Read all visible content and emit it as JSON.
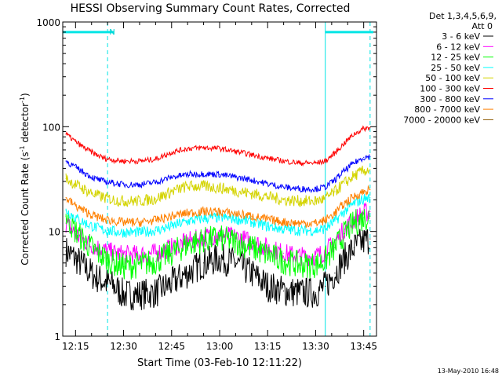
{
  "chart_data": {
    "type": "line",
    "title": "HESSI Observing Summary Count Rates, Corrected",
    "xlabel": "Start Time (03-Feb-10 12:11:22)",
    "ylabel": "Corrected Count Rate (s^-1 detector^-1)",
    "ylabel_parts": {
      "a": "Corrected Count Rate (s",
      "b": "-1",
      "c": " detector",
      "d": "-1",
      "e": ")"
    },
    "y_scale": "log",
    "ylim": [
      1,
      1000
    ],
    "xlim": [
      "12:11",
      "13:49"
    ],
    "x_tick_labels": [
      "12:15",
      "12:30",
      "12:45",
      "13:00",
      "13:15",
      "13:30",
      "13:45"
    ],
    "y_tick_labels": [
      "1",
      "10",
      "100",
      "1000"
    ],
    "legend_title": [
      "Det 1,3,4,5,6,9,",
      "Att 0"
    ],
    "legend_position": "right",
    "attenuator_marker": "N",
    "vertical_markers": [
      {
        "time": "12:11",
        "style": "solid",
        "color": "#00e5e5"
      },
      {
        "time": "12:25",
        "style": "dashed",
        "color": "#00e5e5"
      },
      {
        "time": "13:33",
        "style": "solid",
        "color": "#00e5e5"
      },
      {
        "time": "13:47",
        "style": "dashed",
        "color": "#00e5e5"
      }
    ],
    "horizontal_markers": [
      {
        "from": "12:11",
        "to": "12:27",
        "y": 800,
        "color": "#00e5e5"
      },
      {
        "from": "13:33",
        "to": "13:48",
        "y": 800,
        "color": "#00e5e5"
      }
    ],
    "footer_date": "13-May-2010 16:48",
    "series": [
      {
        "name": "3 - 6 keV",
        "color": "#000000",
        "x": [
          "12:12",
          "12:15",
          "12:18",
          "12:21",
          "12:24",
          "12:27",
          "12:30",
          "12:35",
          "12:40",
          "12:45",
          "12:50",
          "12:55",
          "13:00",
          "13:05",
          "13:10",
          "13:15",
          "13:20",
          "13:25",
          "13:30",
          "13:33",
          "13:36",
          "13:39",
          "13:42",
          "13:45",
          "13:47"
        ],
        "values": [
          6.5,
          5.5,
          4.5,
          3.7,
          3.3,
          3.0,
          2.5,
          2.5,
          2.6,
          3.2,
          4.0,
          5.0,
          5.5,
          5.0,
          4.0,
          3.0,
          2.7,
          2.6,
          2.6,
          3.0,
          4.0,
          5.5,
          7.0,
          8.0,
          8.5
        ]
      },
      {
        "name": "6 - 12 keV",
        "color": "#ff00ff",
        "x": [
          "12:12",
          "12:15",
          "12:18",
          "12:21",
          "12:24",
          "12:27",
          "12:30",
          "12:35",
          "12:40",
          "12:45",
          "12:50",
          "12:55",
          "13:00",
          "13:05",
          "13:10",
          "13:15",
          "13:20",
          "13:25",
          "13:30",
          "13:33",
          "13:36",
          "13:39",
          "13:42",
          "13:45",
          "13:47"
        ],
        "values": [
          12,
          9.5,
          8,
          7.2,
          6.6,
          6.2,
          6.0,
          6.0,
          6.2,
          7.0,
          8.0,
          8.8,
          9.2,
          8.8,
          8.0,
          7.0,
          6.2,
          5.8,
          5.8,
          6.4,
          8.0,
          10.5,
          13,
          15,
          15.5
        ]
      },
      {
        "name": "12 - 25 keV",
        "color": "#00ff00",
        "x": [
          "12:12",
          "12:15",
          "12:18",
          "12:21",
          "12:24",
          "12:27",
          "12:30",
          "12:35",
          "12:40",
          "12:45",
          "12:50",
          "12:55",
          "13:00",
          "13:05",
          "13:10",
          "13:15",
          "13:20",
          "13:25",
          "13:30",
          "13:33",
          "13:36",
          "13:39",
          "13:42",
          "13:45",
          "13:47"
        ],
        "values": [
          14,
          10,
          8,
          6.5,
          5.6,
          5.0,
          4.6,
          4.8,
          5.2,
          6.2,
          7.5,
          8.3,
          8.6,
          8.0,
          7.0,
          6.0,
          5.2,
          4.8,
          4.8,
          5.3,
          7.0,
          9.5,
          12,
          13.5,
          14
        ]
      },
      {
        "name": "25 - 50 keV",
        "color": "#00ffff",
        "x": [
          "12:12",
          "12:15",
          "12:18",
          "12:21",
          "12:24",
          "12:27",
          "12:30",
          "12:35",
          "12:40",
          "12:45",
          "12:50",
          "12:55",
          "13:00",
          "13:05",
          "13:10",
          "13:15",
          "13:20",
          "13:25",
          "13:30",
          "13:33",
          "13:36",
          "13:39",
          "13:42",
          "13:45",
          "13:47"
        ],
        "values": [
          16,
          13.5,
          12,
          11,
          10.3,
          10,
          9.8,
          9.8,
          10.2,
          11.2,
          12.5,
          13.3,
          13.6,
          13.2,
          12.3,
          11.2,
          10.5,
          10.2,
          10.2,
          10.6,
          12.5,
          15.5,
          18.5,
          20.5,
          21
        ]
      },
      {
        "name": "50 - 100 keV",
        "color": "#d4d400",
        "x": [
          "12:12",
          "12:15",
          "12:18",
          "12:21",
          "12:24",
          "12:27",
          "12:30",
          "12:35",
          "12:40",
          "12:45",
          "12:50",
          "12:55",
          "13:00",
          "13:05",
          "13:10",
          "13:15",
          "13:20",
          "13:25",
          "13:30",
          "13:33",
          "13:36",
          "13:39",
          "13:42",
          "13:45",
          "13:47"
        ],
        "values": [
          32,
          28,
          25,
          22.5,
          21,
          20,
          19.5,
          19.5,
          20.5,
          24,
          27,
          27,
          26,
          24.5,
          23,
          21.5,
          20,
          19.5,
          19.5,
          20.5,
          24,
          29,
          34,
          38,
          39
        ]
      },
      {
        "name": "100 - 300 keV",
        "color": "#ff0000",
        "x": [
          "12:12",
          "12:15",
          "12:18",
          "12:21",
          "12:24",
          "12:27",
          "12:30",
          "12:35",
          "12:40",
          "12:45",
          "12:50",
          "12:55",
          "13:00",
          "13:05",
          "13:10",
          "13:15",
          "13:20",
          "13:25",
          "13:30",
          "13:33",
          "13:36",
          "13:39",
          "13:42",
          "13:45",
          "13:47"
        ],
        "values": [
          85,
          72,
          62,
          55,
          50,
          48,
          47,
          47,
          49,
          57,
          62,
          63,
          62,
          58,
          54,
          50,
          47,
          45,
          45,
          47,
          56,
          70,
          85,
          96,
          98
        ]
      },
      {
        "name": "300 - 800 keV",
        "color": "#0000ff",
        "x": [
          "12:12",
          "12:15",
          "12:18",
          "12:21",
          "12:24",
          "12:27",
          "12:30",
          "12:35",
          "12:40",
          "12:45",
          "12:50",
          "12:55",
          "13:00",
          "13:05",
          "13:10",
          "13:15",
          "13:20",
          "13:25",
          "13:30",
          "13:33",
          "13:36",
          "13:39",
          "13:42",
          "13:45",
          "13:47"
        ],
        "values": [
          47,
          41,
          36,
          32,
          30,
          29,
          28,
          28,
          29.5,
          33,
          35,
          35.5,
          35,
          33,
          31,
          28.5,
          26.5,
          25.5,
          25.5,
          26.5,
          31,
          38,
          45,
          51,
          52
        ]
      },
      {
        "name": "800 - 7000 keV",
        "color": "#ff8000",
        "x": [
          "12:12",
          "12:15",
          "12:18",
          "12:21",
          "12:24",
          "12:27",
          "12:30",
          "12:35",
          "12:40",
          "12:45",
          "12:50",
          "12:55",
          "13:00",
          "13:05",
          "13:10",
          "13:15",
          "13:20",
          "13:25",
          "13:30",
          "13:33",
          "13:36",
          "13:39",
          "13:42",
          "13:45",
          "13:47"
        ],
        "values": [
          21,
          17.5,
          15.5,
          14,
          13,
          12.6,
          12.2,
          12.2,
          12.8,
          14,
          15,
          15.5,
          15.4,
          14.8,
          14,
          13,
          12.3,
          12,
          12,
          12.8,
          15,
          18.5,
          21.5,
          24,
          25
        ]
      },
      {
        "name": "7000 - 20000 keV",
        "color": "#8c5a00",
        "x": [],
        "values": []
      }
    ]
  }
}
